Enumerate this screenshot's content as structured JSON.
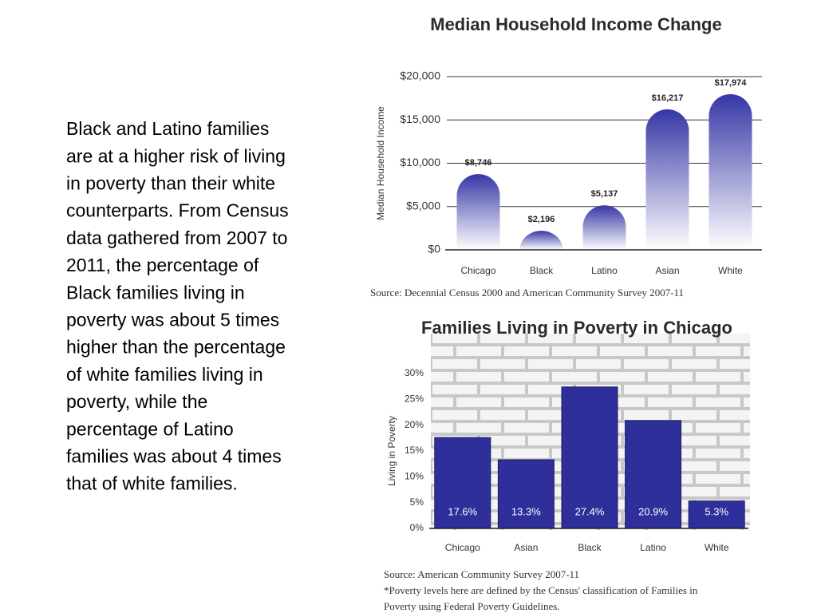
{
  "slide_text": [
    "Black and Latino families",
    "are at a higher risk of living",
    "in poverty than their white",
    "counterparts.  From Census",
    "data gathered from 2007 to",
    "2011, the percentage of",
    "Black families living in",
    "poverty was about 5 times",
    "higher than the percentage",
    "of white families living in",
    "poverty, while the",
    "percentage of Latino",
    "families was about 4 times",
    "that of white families."
  ],
  "chart_data": [
    {
      "type": "bar",
      "title": "Median Household Income Change",
      "y_label": "Median Household Income",
      "categories": [
        "Chicago",
        "Black",
        "Latino",
        "Asian",
        "White"
      ],
      "values": [
        8746,
        2196,
        5137,
        16217,
        17974
      ],
      "value_labels": [
        "$8,746",
        "$2,196",
        "$5,137",
        "$16,217",
        "$17,974"
      ],
      "color": "#3636a6",
      "ylim": [
        0,
        20000
      ],
      "yticks": [
        {
          "value": 0,
          "label": "$0"
        },
        {
          "value": 5000,
          "label": "$5,000"
        },
        {
          "value": 10000,
          "label": "$10,000"
        },
        {
          "value": 15000,
          "label": "$15,000"
        },
        {
          "value": 20000,
          "label": "$20,000"
        }
      ],
      "grid": true,
      "notes": [
        "Source: Decennial Census 2000 and American Community Survey 2007-11"
      ]
    },
    {
      "type": "bar",
      "title": "Families Living in Poverty in Chicago",
      "y_label": "Living in Poverty",
      "categories": [
        "Chicago",
        "Asian",
        "Black",
        "Latino",
        "White"
      ],
      "values": [
        17.6,
        13.3,
        27.4,
        20.9,
        5.3
      ],
      "value_labels": [
        "17.6%",
        "13.3%",
        "27.4%",
        "20.9%",
        "5.3%"
      ],
      "color": "#2f2f9c",
      "ylim": [
        0,
        30
      ],
      "yticks": [
        {
          "value": 0,
          "label": "0%"
        },
        {
          "value": 5,
          "label": "5%"
        },
        {
          "value": 10,
          "label": "10%"
        },
        {
          "value": 15,
          "label": "15%"
        },
        {
          "value": 20,
          "label": "20%"
        },
        {
          "value": 25,
          "label": "25%"
        },
        {
          "value": 30,
          "label": "30%"
        }
      ],
      "grid": false,
      "notes": [
        "Source: American Community Survey 2007-11",
        "*Poverty levels here are defined by the Census' classification of Families in",
        "Poverty using Federal Poverty Guidelines."
      ]
    }
  ]
}
